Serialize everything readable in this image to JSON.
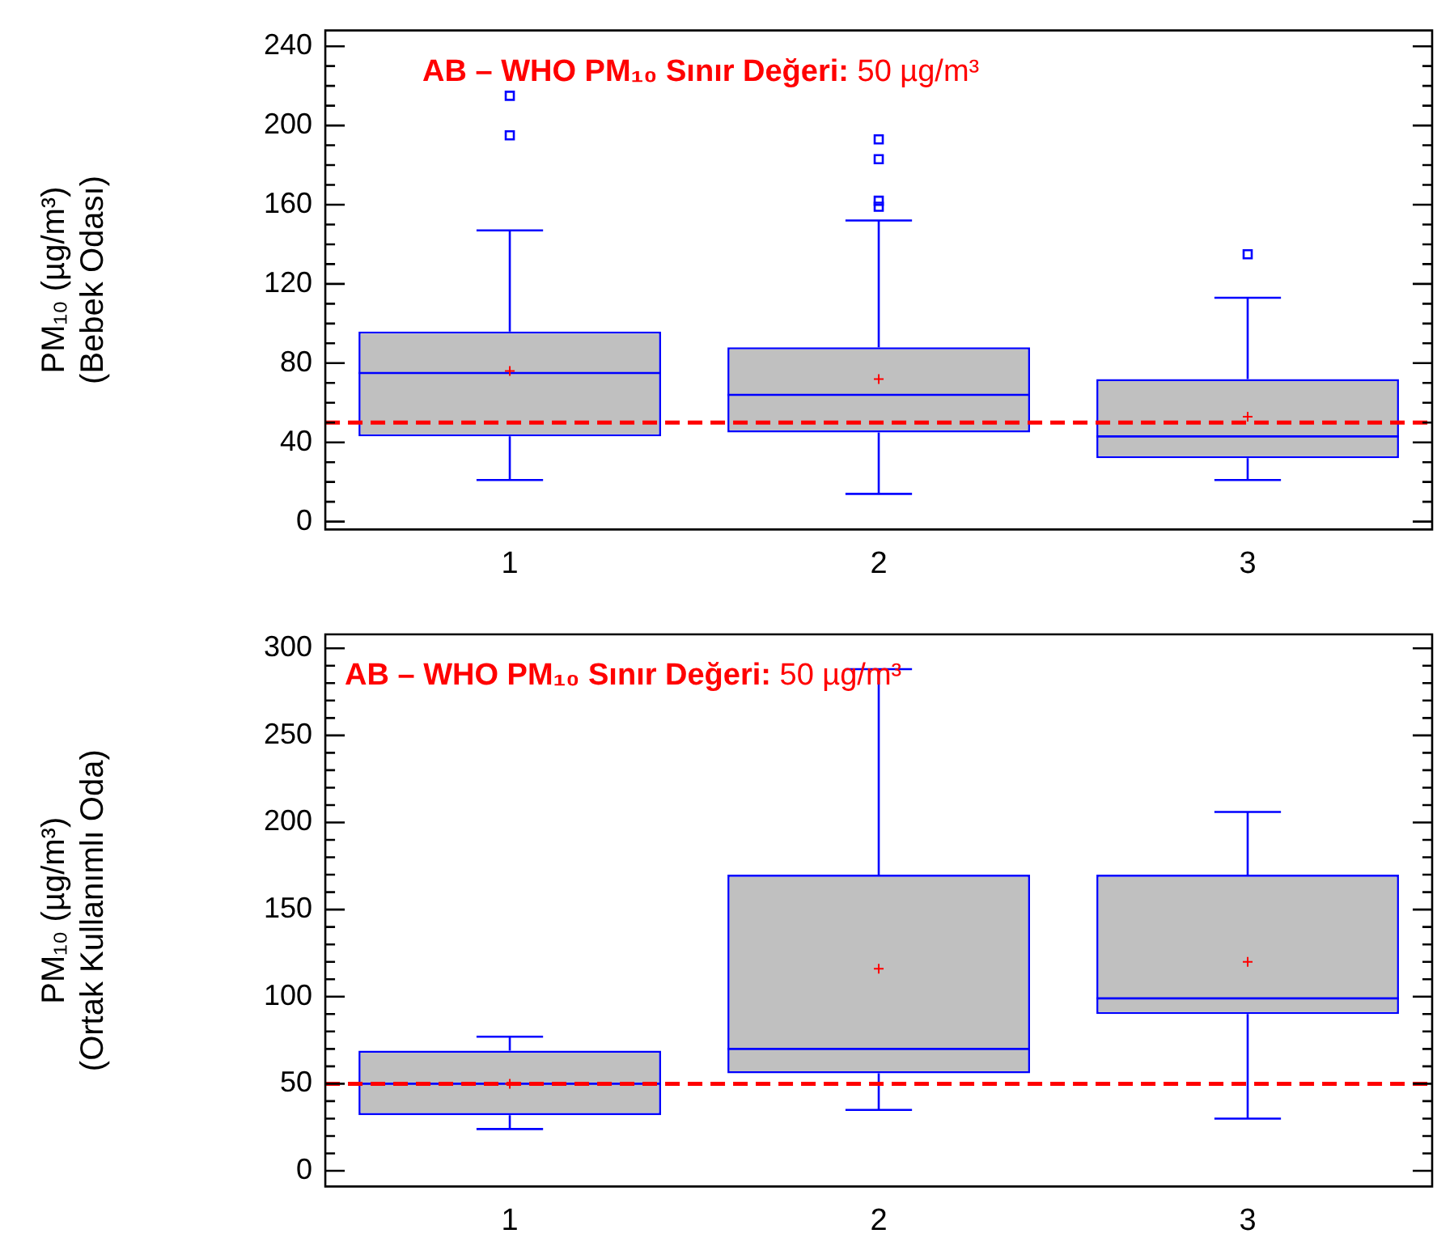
{
  "chart_data": [
    {
      "type": "box",
      "ylabel": "PM₁₀ (µg/m³)\n(Bebek Odası)",
      "categories": [
        "1",
        "2",
        "3"
      ],
      "ylim": [
        -4,
        248
      ],
      "yticks": [
        {
          "value": 0,
          "label": "0"
        },
        {
          "value": 10,
          "label": null
        },
        {
          "value": 20,
          "label": null
        },
        {
          "value": 30,
          "label": null
        },
        {
          "value": 40,
          "label": "40"
        },
        {
          "value": 50,
          "label": null
        },
        {
          "value": 60,
          "label": null
        },
        {
          "value": 70,
          "label": null
        },
        {
          "value": 80,
          "label": "80"
        },
        {
          "value": 90,
          "label": null
        },
        {
          "value": 100,
          "label": null
        },
        {
          "value": 110,
          "label": null
        },
        {
          "value": 120,
          "label": "120"
        },
        {
          "value": 130,
          "label": null
        },
        {
          "value": 140,
          "label": null
        },
        {
          "value": 150,
          "label": null
        },
        {
          "value": 160,
          "label": "160"
        },
        {
          "value": 170,
          "label": null
        },
        {
          "value": 180,
          "label": null
        },
        {
          "value": 190,
          "label": null
        },
        {
          "value": 200,
          "label": "200"
        },
        {
          "value": 210,
          "label": null
        },
        {
          "value": 220,
          "label": null
        },
        {
          "value": 230,
          "label": null
        },
        {
          "value": 240,
          "label": "240"
        }
      ],
      "series": [
        {
          "color": "#0000ff",
          "boxes": [
            {
              "low": 21,
              "q1": 43,
              "median": 75,
              "q3": 96,
              "high": 147,
              "mean": 76,
              "outliers": [
                195,
                215
              ]
            },
            {
              "low": 14,
              "q1": 45,
              "median": 64,
              "q3": 88,
              "high": 152,
              "mean": 72,
              "outliers": [
                159,
                162,
                183,
                193
              ]
            },
            {
              "low": 21,
              "q1": 32,
              "median": 43,
              "q3": 72,
              "high": 113,
              "mean": 53,
              "outliers": [
                135
              ]
            }
          ]
        }
      ],
      "ref_lines": [
        {
          "axis": "y",
          "value": 50,
          "label": "AB – WHO PM₁₀ Sınır Değeri: 50 µg/m³",
          "color": "#ff0000",
          "line_style": "dashed"
        }
      ],
      "grid": false,
      "legend": false
    },
    {
      "type": "box",
      "ylabel": "PM₁₀ (µg/m³)\n(Ortak Kullanımlı Oda)",
      "categories": [
        "1",
        "2",
        "3"
      ],
      "ylim": [
        -9,
        308
      ],
      "yticks": [
        {
          "value": 0,
          "label": "0"
        },
        {
          "value": 10,
          "label": null
        },
        {
          "value": 20,
          "label": null
        },
        {
          "value": 30,
          "label": null
        },
        {
          "value": 40,
          "label": null
        },
        {
          "value": 50,
          "label": "50"
        },
        {
          "value": 60,
          "label": null
        },
        {
          "value": 70,
          "label": null
        },
        {
          "value": 80,
          "label": null
        },
        {
          "value": 90,
          "label": null
        },
        {
          "value": 100,
          "label": "100"
        },
        {
          "value": 110,
          "label": null
        },
        {
          "value": 120,
          "label": null
        },
        {
          "value": 130,
          "label": null
        },
        {
          "value": 140,
          "label": null
        },
        {
          "value": 150,
          "label": "150"
        },
        {
          "value": 160,
          "label": null
        },
        {
          "value": 170,
          "label": null
        },
        {
          "value": 180,
          "label": null
        },
        {
          "value": 190,
          "label": null
        },
        {
          "value": 200,
          "label": "200"
        },
        {
          "value": 210,
          "label": null
        },
        {
          "value": 220,
          "label": null
        },
        {
          "value": 230,
          "label": null
        },
        {
          "value": 240,
          "label": null
        },
        {
          "value": 250,
          "label": "250"
        },
        {
          "value": 260,
          "label": null
        },
        {
          "value": 270,
          "label": null
        },
        {
          "value": 280,
          "label": null
        },
        {
          "value": 290,
          "label": null
        },
        {
          "value": 300,
          "label": "300"
        }
      ],
      "series": [
        {
          "color": "#0000ff",
          "boxes": [
            {
              "low": 24,
              "q1": 32,
              "median": 50,
              "q3": 69,
              "high": 77,
              "mean": 50
            },
            {
              "low": 35,
              "q1": 56,
              "median": 70,
              "q3": 170,
              "high": 288,
              "mean": 116
            },
            {
              "low": 30,
              "q1": 90,
              "median": 99,
              "q3": 170,
              "high": 206,
              "mean": 120
            }
          ]
        }
      ],
      "ref_lines": [
        {
          "axis": "y",
          "value": 50,
          "label": "AB – WHO PM₁₀ Sınır Değeri: 50 µg/m³",
          "color": "#ff0000",
          "line_style": "dashed"
        }
      ],
      "grid": false,
      "legend": false
    }
  ]
}
